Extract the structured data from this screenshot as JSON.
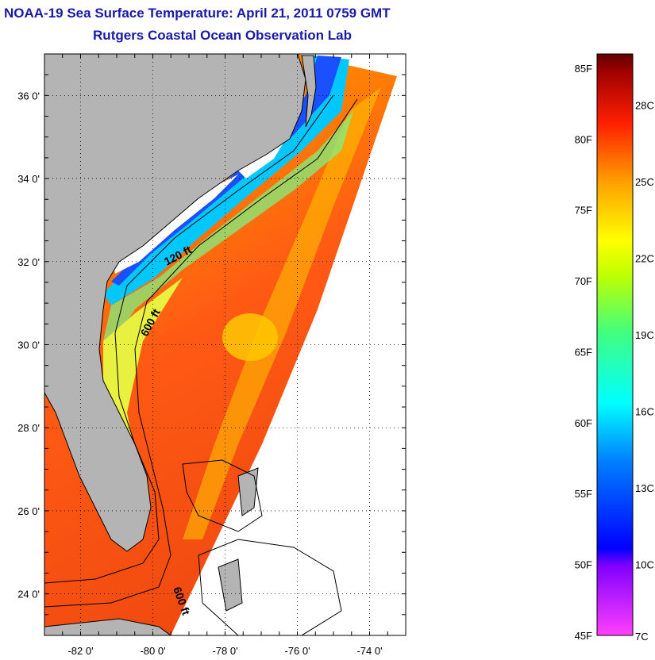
{
  "title": {
    "line1": "NOAA-19 Sea Surface Temperature:  April 21, 2011 0759 GMT",
    "line2": "Rutgers Coastal Ocean Observation Lab"
  },
  "map": {
    "lon_range": [
      -83,
      -73
    ],
    "lat_range": [
      23,
      37
    ],
    "lat_ticks": [
      {
        "value": 36,
        "label": "36 0'"
      },
      {
        "value": 34,
        "label": "34 0'"
      },
      {
        "value": 32,
        "label": "32 0'"
      },
      {
        "value": 30,
        "label": "30 0'"
      },
      {
        "value": 28,
        "label": "28 0'"
      },
      {
        "value": 26,
        "label": "26 0'"
      },
      {
        "value": 24,
        "label": "24 0'"
      }
    ],
    "lon_ticks": [
      {
        "value": -82,
        "label": "-82 0'"
      },
      {
        "value": -80,
        "label": "-80 0'"
      },
      {
        "value": -78,
        "label": "-78 0'"
      },
      {
        "value": -76,
        "label": "-76 0'"
      },
      {
        "value": -74,
        "label": "-74 0'"
      }
    ],
    "contour_labels": [
      "120 ft",
      "600 ft",
      "600 ft"
    ],
    "colors": {
      "land": "#b4b4b4",
      "coast": "#000000",
      "grid": "#000000"
    }
  },
  "colorbar": {
    "range_f": [
      45,
      86
    ],
    "f_labels": [
      "85F",
      "80F",
      "75F",
      "70F",
      "65F",
      "60F",
      "55F",
      "50F",
      "45F"
    ],
    "c_labels": [
      "28C",
      "25C",
      "22C",
      "19C",
      "16C",
      "13C",
      "10C",
      "7C"
    ]
  }
}
